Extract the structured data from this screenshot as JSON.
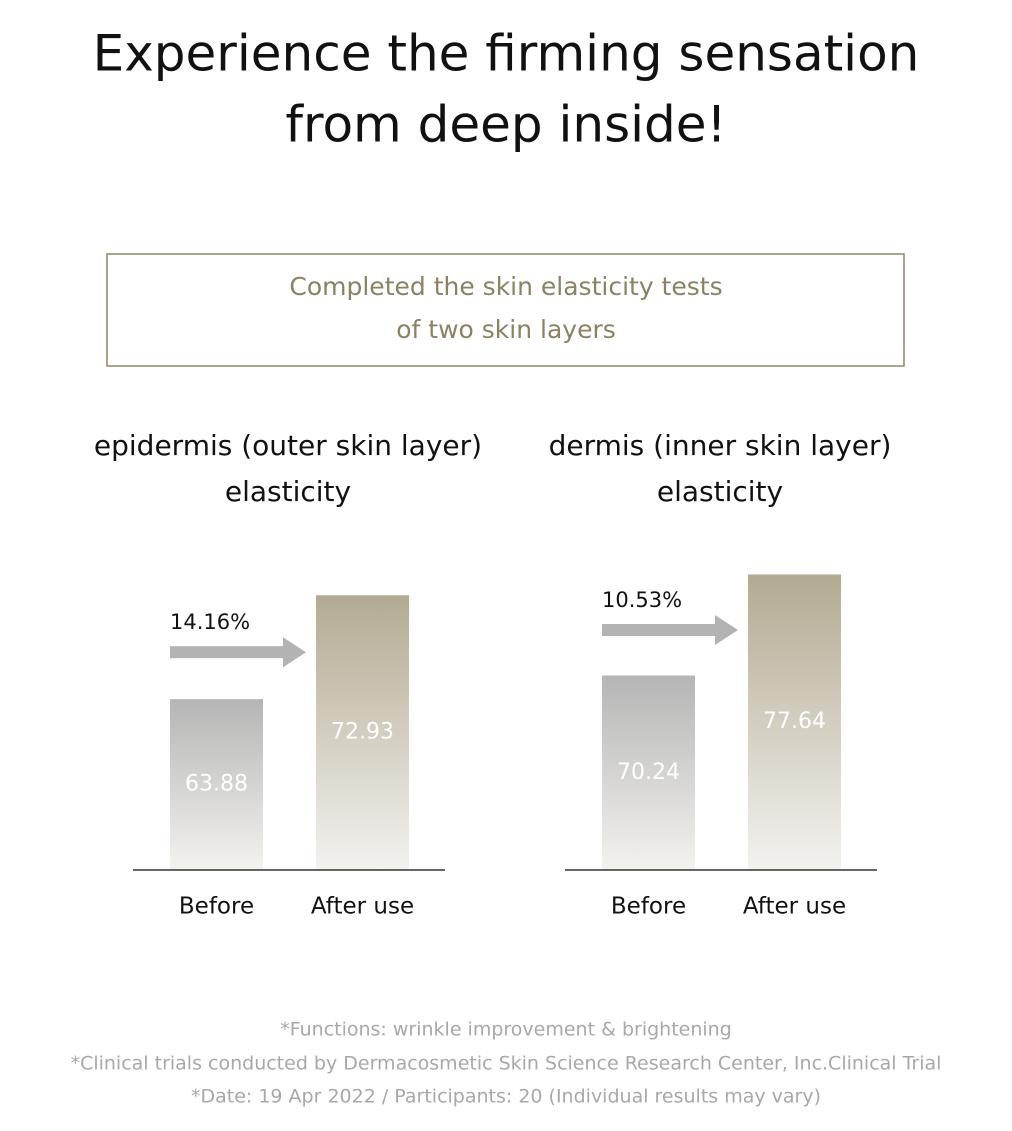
{
  "header": {
    "title": [
      "Experience the firming sensation",
      "from deep inside!"
    ]
  },
  "box": {
    "text": [
      "Completed the skin elasticity tests",
      "of two skin layers"
    ]
  },
  "chart_data": [
    {
      "type": "bar",
      "title": [
        "epidermis (outer skin layer)",
        "elasticity"
      ],
      "annotation": "14.16%",
      "categories": [
        "Before",
        "After use"
      ],
      "values": [
        63.88,
        72.93
      ],
      "colors": [
        "#b5b5b5",
        "#b3aa92"
      ],
      "ylim": [
        49,
        76
      ]
    },
    {
      "type": "bar",
      "title": [
        "dermis (inner skin layer)",
        "elasticity"
      ],
      "annotation": "10.53%",
      "categories": [
        "Before",
        "After use"
      ],
      "values": [
        70.24,
        77.64
      ],
      "colors": [
        "#b5b5b5",
        "#b3aa92"
      ],
      "ylim": [
        56,
        78.7
      ]
    }
  ],
  "notes": [
    "*Functions: wrinkle improvement & brightening",
    "*Clinical trials conducted by Dermacosmetic Skin Science Research Center, Inc.Clinical Trial",
    "*Date: 19 Apr 2022 / Participants: 20 (Individual results may vary)"
  ]
}
